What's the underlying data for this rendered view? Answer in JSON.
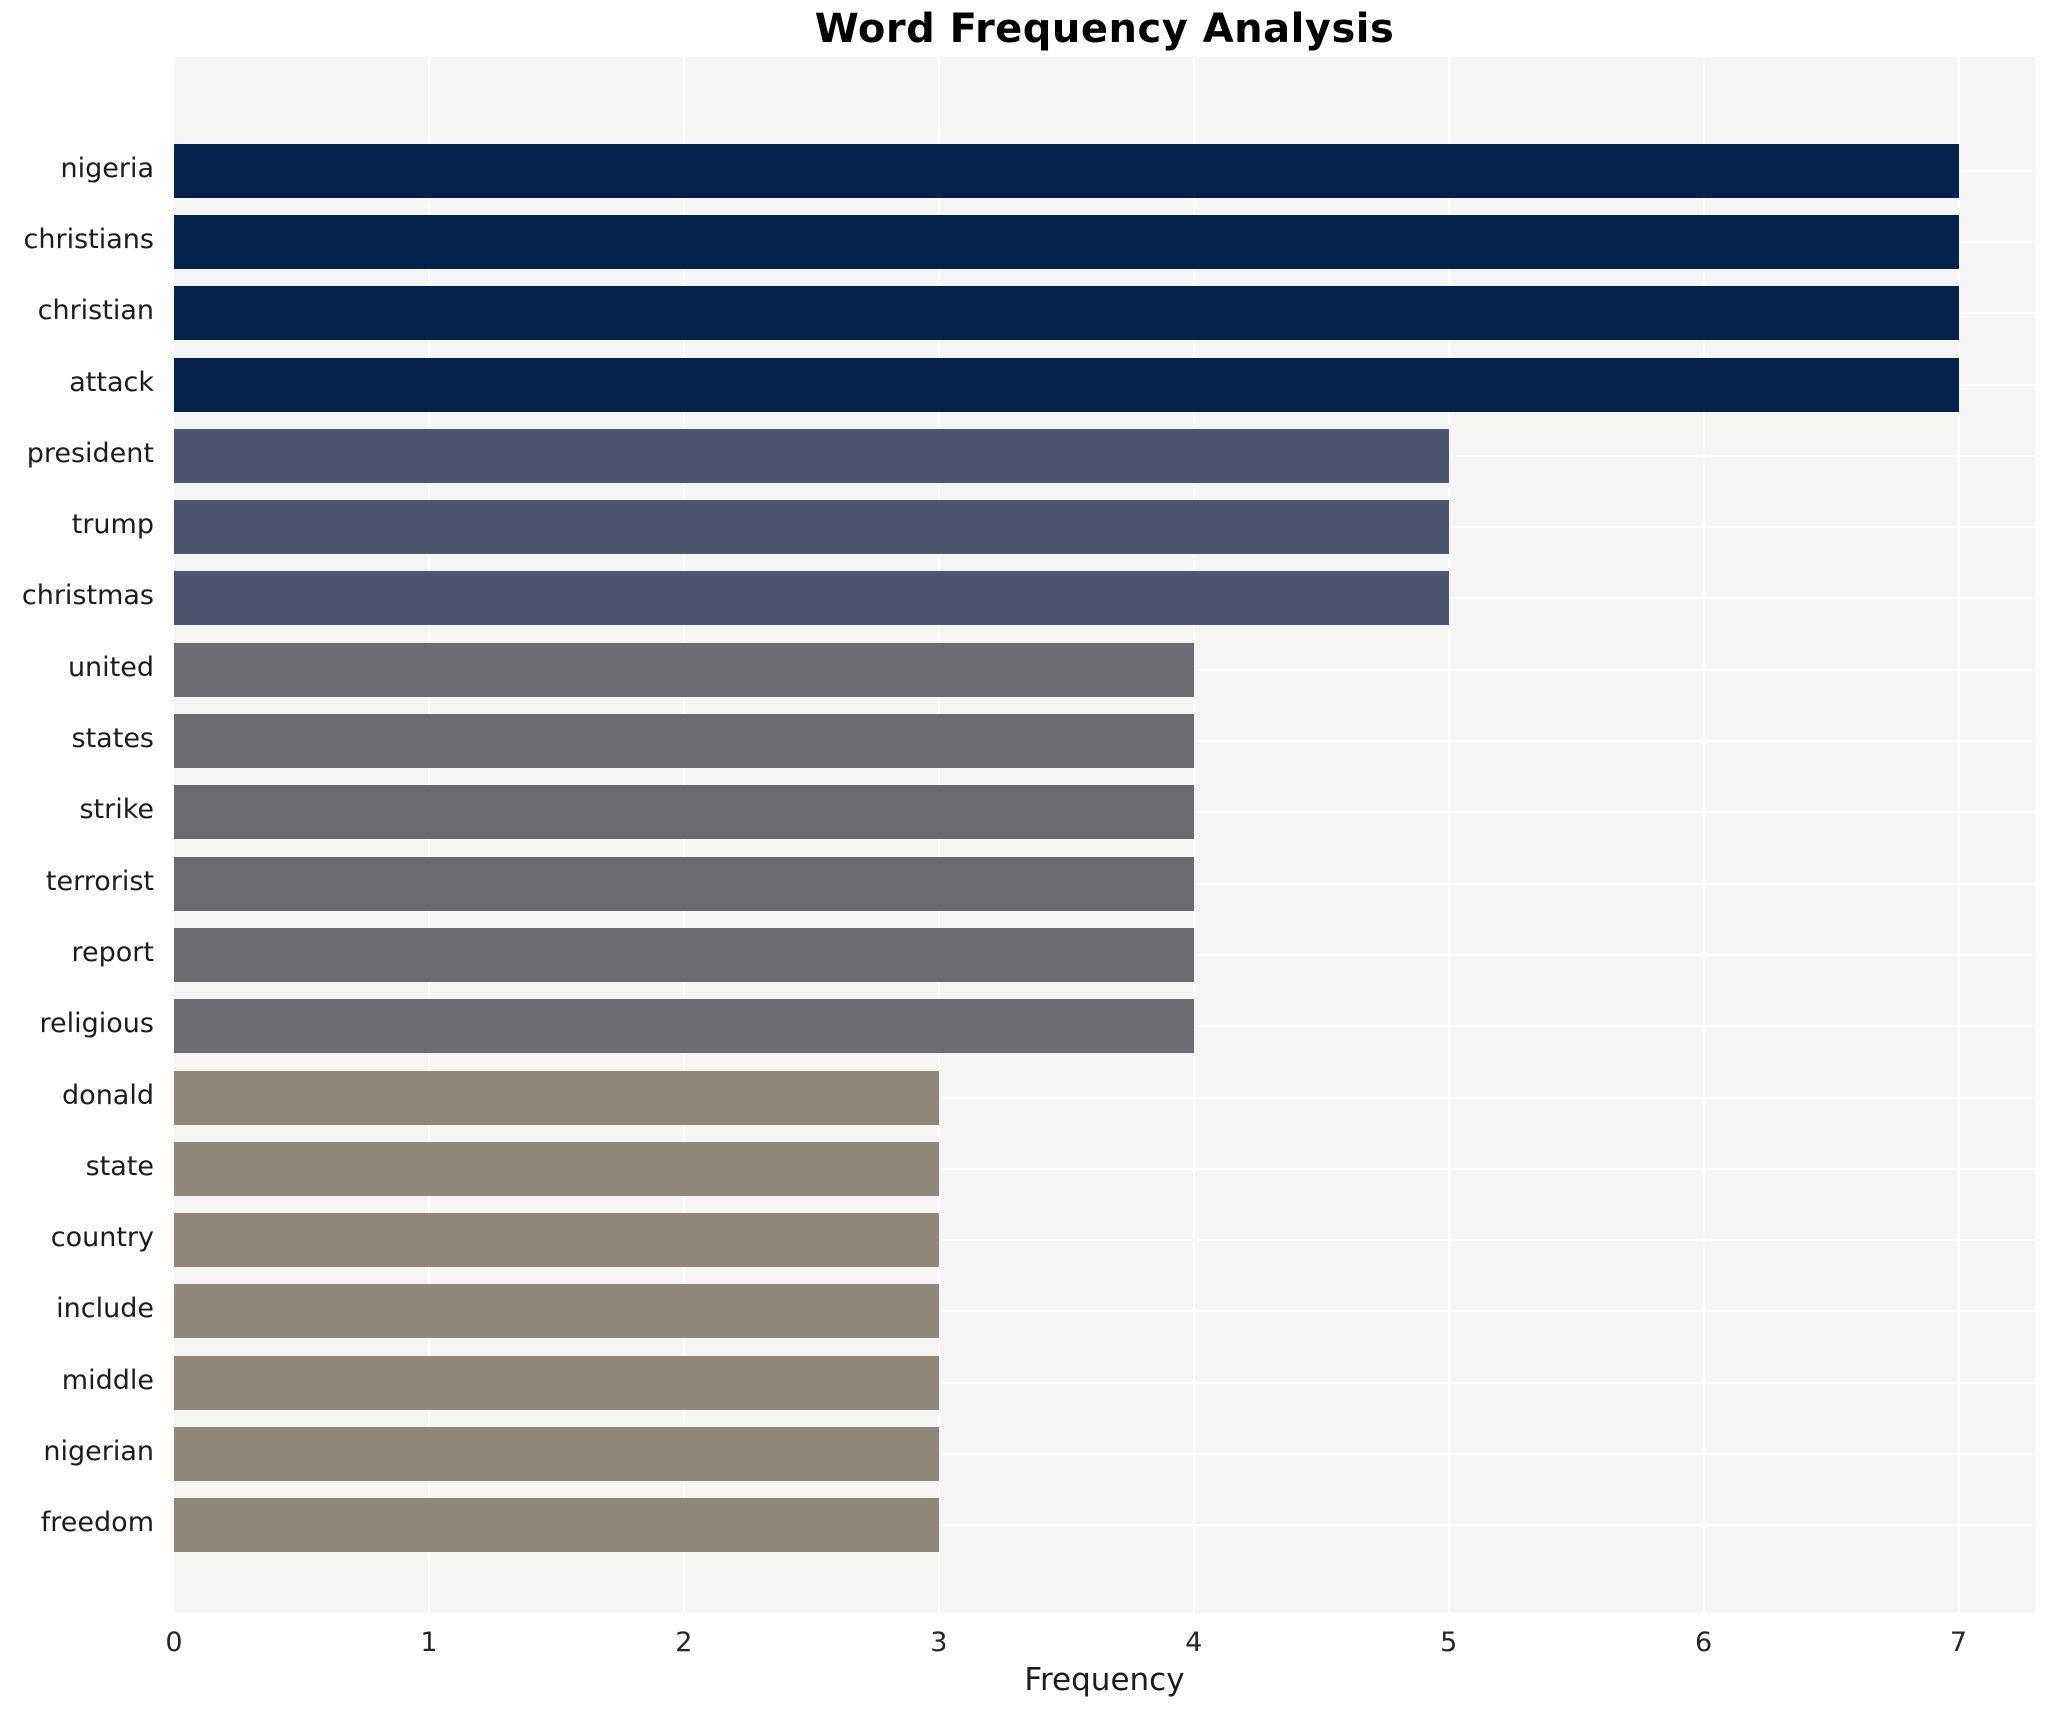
{
  "title": "Word Frequency Analysis",
  "xlabel": "Frequency",
  "chart_data": {
    "type": "bar",
    "orientation": "horizontal",
    "title": "Word Frequency Analysis",
    "xlabel": "Frequency",
    "ylabel": "",
    "xlim": [
      0,
      7.3
    ],
    "x_ticks": [
      0,
      1,
      2,
      3,
      4,
      5,
      6,
      7
    ],
    "grid": true,
    "legend": "none",
    "categories": [
      "nigeria",
      "christians",
      "christian",
      "attack",
      "president",
      "trump",
      "christmas",
      "united",
      "states",
      "strike",
      "terrorist",
      "report",
      "religious",
      "donald",
      "state",
      "country",
      "include",
      "middle",
      "nigerian",
      "freedom"
    ],
    "values": [
      7,
      7,
      7,
      7,
      5,
      5,
      5,
      4,
      4,
      4,
      4,
      4,
      4,
      3,
      3,
      3,
      3,
      3,
      3,
      3
    ],
    "bar_colors": [
      "#04234c",
      "#04234c",
      "#04234c",
      "#04234c",
      "#4d556e",
      "#4d556e",
      "#4d556e",
      "#6b6c6f",
      "#6b6c6f",
      "#6b6c6f",
      "#6b6c6f",
      "#6b6c6f",
      "#6b6c6f",
      "#8d8878",
      "#8d8878",
      "#8d8878",
      "#8d8878",
      "#8d8878",
      "#8d8878",
      "#8d8878"
    ],
    "value_color_map": {
      "7": "#04234c",
      "5": "#4d556e",
      "4": "#6b6c6f",
      "3": "#8d8878"
    }
  },
  "colors": {
    "plot_background": "#f5f5f3",
    "figure_background": "#ffffff",
    "gridline": "#ffffff",
    "title_text": "#000000",
    "tick_text": "#262626"
  }
}
